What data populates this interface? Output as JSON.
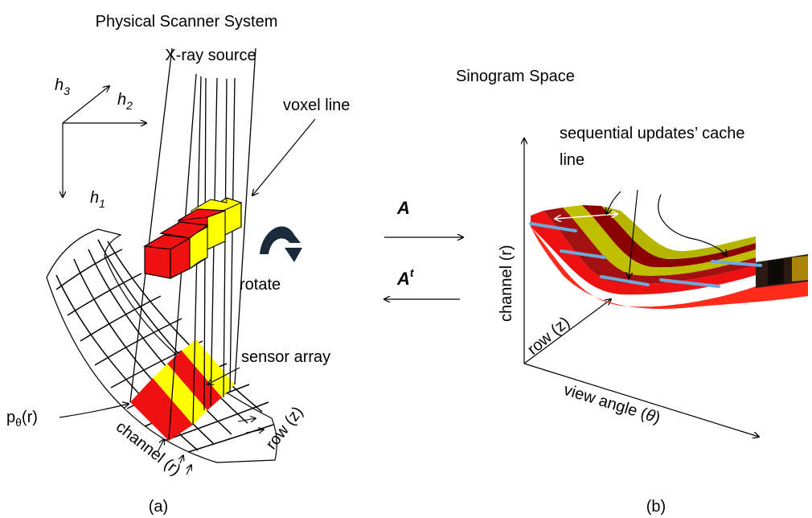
{
  "left_panel": {
    "title": "Physical Scanner System",
    "source_label": "X-ray source",
    "voxel_label": "voxel line",
    "rotate_label": "rotate",
    "sensor_label": "sensor array",
    "projection_label": "p",
    "projection_sub": "θ",
    "projection_arg": "(r)",
    "axis_h1": "h",
    "axis_h1_sub": "1",
    "axis_h2": "h",
    "axis_h2_sub": "2",
    "axis_h3": "h",
    "axis_h3_sub": "3",
    "channel_label": "channel (r)",
    "row_label": "row (z)",
    "caption": "(a)"
  },
  "middle": {
    "forward_op": "A",
    "back_op": "A",
    "back_op_sup": "t"
  },
  "right_panel": {
    "title": "Sinogram Space",
    "cache_label_line1": "sequential updates’ cache",
    "cache_label_line2": "line",
    "axis_channel": "channel (r)",
    "axis_row": "row (z)",
    "axis_view_prefix": "view angle (",
    "axis_view_theta": "θ",
    "axis_view_suffix": ")",
    "caption": "(b)"
  },
  "colors": {
    "red": "#ee1111",
    "yellow": "#ffff00",
    "dark_red": "#8b0000",
    "olive": "#999900",
    "cache_line": "#6fa8dc"
  }
}
